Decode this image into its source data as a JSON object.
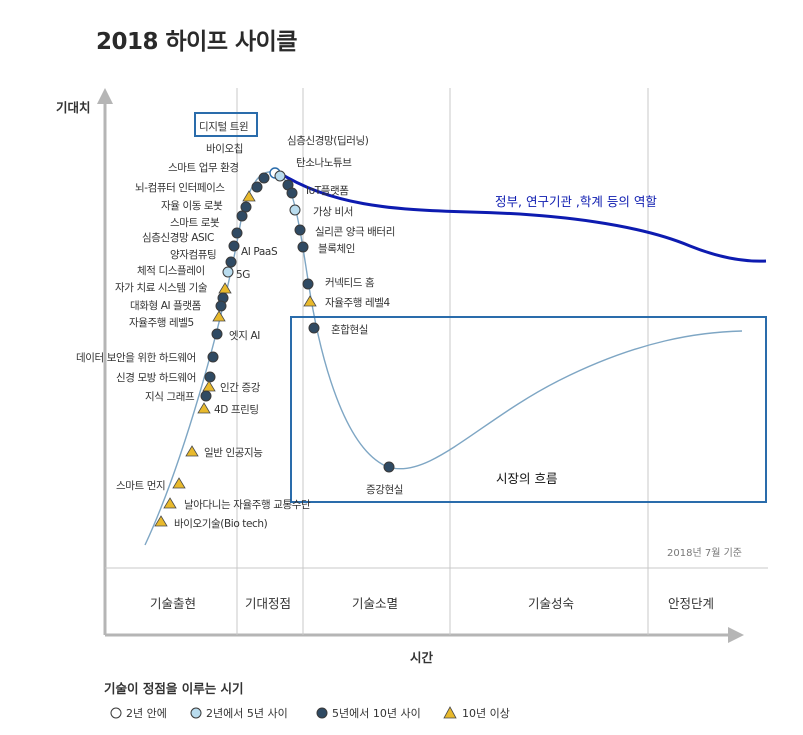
{
  "title": "2018 하이프 사이클",
  "axes": {
    "y_label": "기대치",
    "x_label": "시간"
  },
  "phases": [
    "기술출현",
    "기대정점",
    "기술소멸",
    "기술성숙",
    "안정단계"
  ],
  "as_of": "2018년 7월 기준",
  "annotations": {
    "gov": "정부, 연구기관 ,학계 등의 역할",
    "market": "시장의 흐름"
  },
  "legend": {
    "title": "기술이 정점을 이루는 시기",
    "items": [
      {
        "key": "lt2",
        "label": "2년 안에"
      },
      {
        "key": "y2to5",
        "label": "2년에서 5년 사이"
      },
      {
        "key": "y5to10",
        "label": "5년에서 10년 사이"
      },
      {
        "key": "gt10",
        "label": "10년 이상"
      }
    ]
  },
  "colors": {
    "lt2": "#ffffff",
    "y2to5": "#b9dcee",
    "y5to10": "#2f4a63",
    "gt10": "#e8b92c",
    "curve": "#7ea6c4",
    "gov_line": "#0d1bb0",
    "box": "#2a6cab"
  },
  "technologies": [
    {
      "name": "디지털 트윈",
      "marker": "lt2",
      "highlight": true
    },
    {
      "name": "바이오칩",
      "marker": "y5to10"
    },
    {
      "name": "스마트 업무 환경",
      "marker": "y5to10"
    },
    {
      "name": "뇌-컴퓨터 인터페이스",
      "marker": "gt10"
    },
    {
      "name": "자율 이동 로봇",
      "marker": "y5to10"
    },
    {
      "name": "스마트 로봇",
      "marker": "y5to10"
    },
    {
      "name": "심층신경망 ASIC",
      "marker": "y5to10"
    },
    {
      "name": "AI PaaS",
      "marker": "y5to10"
    },
    {
      "name": "양자컴퓨팅",
      "marker": "y5to10"
    },
    {
      "name": "5G",
      "marker": "y2to5"
    },
    {
      "name": "체적 디스플레이",
      "marker": "gt10"
    },
    {
      "name": "자가 치료 시스템 기술",
      "marker": "y5to10"
    },
    {
      "name": "대화형 AI 플랫폼",
      "marker": "y5to10"
    },
    {
      "name": "자율주행 레벨5",
      "marker": "gt10"
    },
    {
      "name": "엣지 AI",
      "marker": "y5to10"
    },
    {
      "name": "데이터 보안을 위한 하드웨어",
      "marker": "y5to10"
    },
    {
      "name": "신경 모방 하드웨어",
      "marker": "y5to10"
    },
    {
      "name": "인간 증강",
      "marker": "gt10"
    },
    {
      "name": "지식 그래프",
      "marker": "y5to10"
    },
    {
      "name": "4D 프린팅",
      "marker": "gt10"
    },
    {
      "name": "일반 인공지능",
      "marker": "gt10"
    },
    {
      "name": "스마트 먼지",
      "marker": "gt10"
    },
    {
      "name": "날아다니는 자율주행 교통수단",
      "marker": "gt10"
    },
    {
      "name": "바이오기술(Bio tech)",
      "marker": "gt10"
    },
    {
      "name": "심층신경망(딥러닝)",
      "marker": "y2to5"
    },
    {
      "name": "탄소나노튜브",
      "marker": "y5to10"
    },
    {
      "name": "IoT플랫폼",
      "marker": "y5to10"
    },
    {
      "name": "가상 비서",
      "marker": "y2to5"
    },
    {
      "name": "실리콘 양극 배터리",
      "marker": "y5to10"
    },
    {
      "name": "블록체인",
      "marker": "y5to10"
    },
    {
      "name": "커넥티드 홈",
      "marker": "y5to10"
    },
    {
      "name": "자율주행 레벨4",
      "marker": "gt10"
    },
    {
      "name": "혼합현실",
      "marker": "y5to10"
    },
    {
      "name": "증강현실",
      "marker": "y5to10"
    }
  ]
}
